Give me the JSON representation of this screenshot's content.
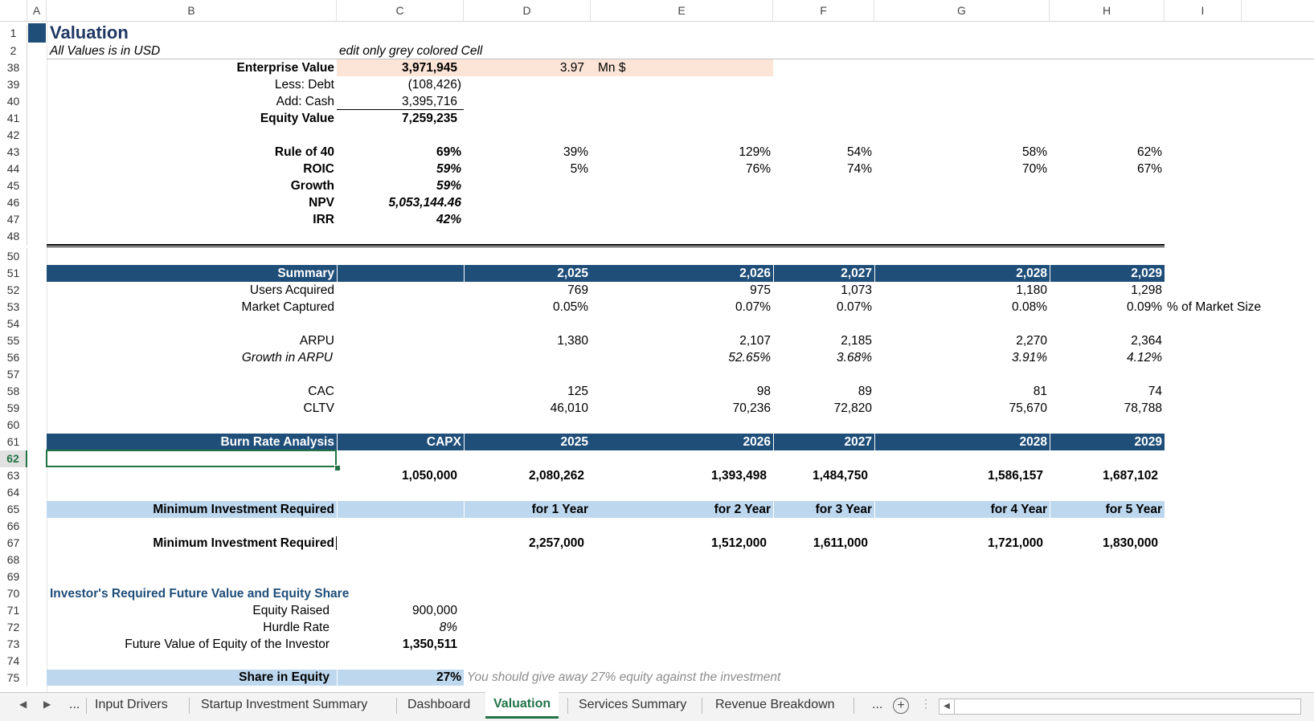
{
  "columns": [
    "A",
    "B",
    "C",
    "D",
    "E",
    "F",
    "G",
    "H",
    "I"
  ],
  "row_numbers": [
    "1",
    "2",
    "38",
    "39",
    "40",
    "41",
    "42",
    "43",
    "44",
    "45",
    "46",
    "47",
    "48",
    "50",
    "51",
    "52",
    "53",
    "54",
    "55",
    "56",
    "57",
    "58",
    "59",
    "60",
    "61",
    "62",
    "63",
    "64",
    "65",
    "66",
    "67",
    "68",
    "69",
    "70",
    "71",
    "72",
    "73",
    "74",
    "75"
  ],
  "selected_row": "62",
  "title": "Valuation",
  "subtitle": "All Values is in USD",
  "edit_note": "edit only grey colored Cell",
  "valuation": {
    "ev_label": "Enterprise Value",
    "ev_value": "3,971,945",
    "ev_mn": "3.97",
    "ev_unit": "Mn $",
    "debt_label": "Less: Debt",
    "debt_value": "(108,426)",
    "cash_label": "Add: Cash",
    "cash_value": "3,395,716",
    "equity_label": "Equity Value",
    "equity_value": "7,259,235"
  },
  "metrics": {
    "rule40_label": "Rule of 40",
    "rule40": [
      "69%",
      "39%",
      "129%",
      "54%",
      "58%",
      "62%"
    ],
    "roic_label": "ROIC",
    "roic": [
      "59%",
      "5%",
      "76%",
      "74%",
      "70%",
      "67%"
    ],
    "growth_label": "Growth",
    "growth": "59%",
    "npv_label": "NPV",
    "npv": "5,053,144.46",
    "irr_label": "IRR",
    "irr": "42%"
  },
  "summary": {
    "header": "Summary",
    "years": [
      "2,025",
      "2,026",
      "2,027",
      "2,028",
      "2,029"
    ],
    "users_label": "Users Acquired",
    "users": [
      "769",
      "975",
      "1,073",
      "1,180",
      "1,298"
    ],
    "market_label": "Market Captured",
    "market": [
      "0.05%",
      "0.07%",
      "0.07%",
      "0.08%",
      "0.09%"
    ],
    "market_note": "% of Market Size",
    "arpu_label": "ARPU",
    "arpu": [
      "1,380",
      "2,107",
      "2,185",
      "2,270",
      "2,364"
    ],
    "arpu_growth_label": "Growth in ARPU",
    "arpu_growth": [
      "",
      "52.65%",
      "3.68%",
      "3.91%",
      "4.12%"
    ],
    "cac_label": "CAC",
    "cac": [
      "125",
      "98",
      "89",
      "81",
      "74"
    ],
    "cltv_label": "CLTV",
    "cltv": [
      "46,010",
      "70,236",
      "72,820",
      "75,670",
      "78,788"
    ]
  },
  "burn": {
    "header": "Burn Rate Analysis",
    "capx_header": "CAPX",
    "years": [
      "2025",
      "2026",
      "2027",
      "2028",
      "2029"
    ],
    "capx": "1,050,000",
    "values": [
      "2,080,262",
      "1,393,498",
      "1,484,750",
      "1,586,157",
      "1,687,102"
    ],
    "min_label": "Minimum Investment Required",
    "periods": [
      "for 1 Year",
      "for 2 Year",
      "for 3 Year",
      "for 4 Year",
      "for 5 Year"
    ],
    "min_label2": "Minimum Investment Required",
    "min_values": [
      "2,257,000",
      "1,512,000",
      "1,611,000",
      "1,721,000",
      "1,830,000"
    ]
  },
  "investor": {
    "header": "Investor's Required Future Value and Equity Share",
    "equity_raised_label": "Equity Raised",
    "equity_raised": "900,000",
    "hurdle_label": "Hurdle Rate",
    "hurdle": "8%",
    "fv_label": "Future Value of Equity of the Investor",
    "fv": "1,350,511",
    "share_label": "Share in Equity",
    "share": "27%",
    "share_note": "You should give away 27% equity against the investment"
  },
  "tabs": [
    "...",
    "Input Drivers",
    "Startup Investment Summary",
    "Dashboard",
    "Valuation",
    "Services Summary",
    "Revenue Breakdown",
    "..."
  ],
  "active_tab": "Valuation",
  "colors": {
    "navy": "#1f4e79",
    "light_blue": "#bdd7ee",
    "peach": "#fce4d6",
    "excel_green": "#217346"
  }
}
